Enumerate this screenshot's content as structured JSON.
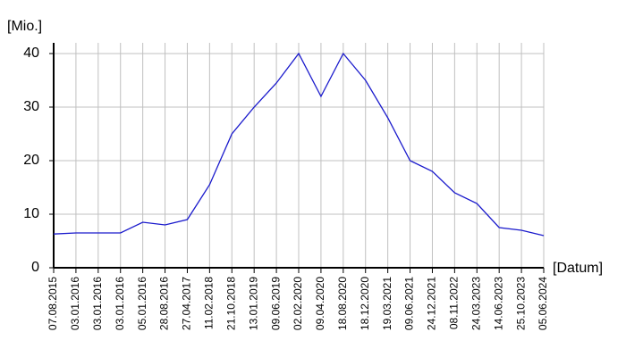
{
  "chart_data": {
    "type": "line",
    "y_label": "[Mio.]",
    "x_label": "[Datum]",
    "categories": [
      "07.08.2015",
      "03.01.2016",
      "03.01.2016",
      "03.01.2016",
      "05.01.2016",
      "28.08.2016",
      "27.04.2017",
      "11.02.2018",
      "21.10.2018",
      "13.01.2019",
      "09.06.2019",
      "02.02.2020",
      "09.04.2020",
      "18.08.2020",
      "18.12.2020",
      "19.03.2021",
      "09.06.2021",
      "24.12.2021",
      "08.11.2022",
      "24.03.2023",
      "14.06.2023",
      "25.10.2023",
      "05.06.2024"
    ],
    "values": [
      6.3,
      6.5,
      6.5,
      6.5,
      8.5,
      8,
      9,
      15.5,
      25,
      30,
      34.5,
      40,
      32,
      40,
      35,
      28,
      20,
      18,
      14,
      12,
      7.5,
      7,
      6
    ],
    "color": "#1a1acc",
    "ylim": [
      0,
      40
    ],
    "yticks": [
      0,
      10,
      20,
      30,
      40
    ],
    "grid": true
  }
}
